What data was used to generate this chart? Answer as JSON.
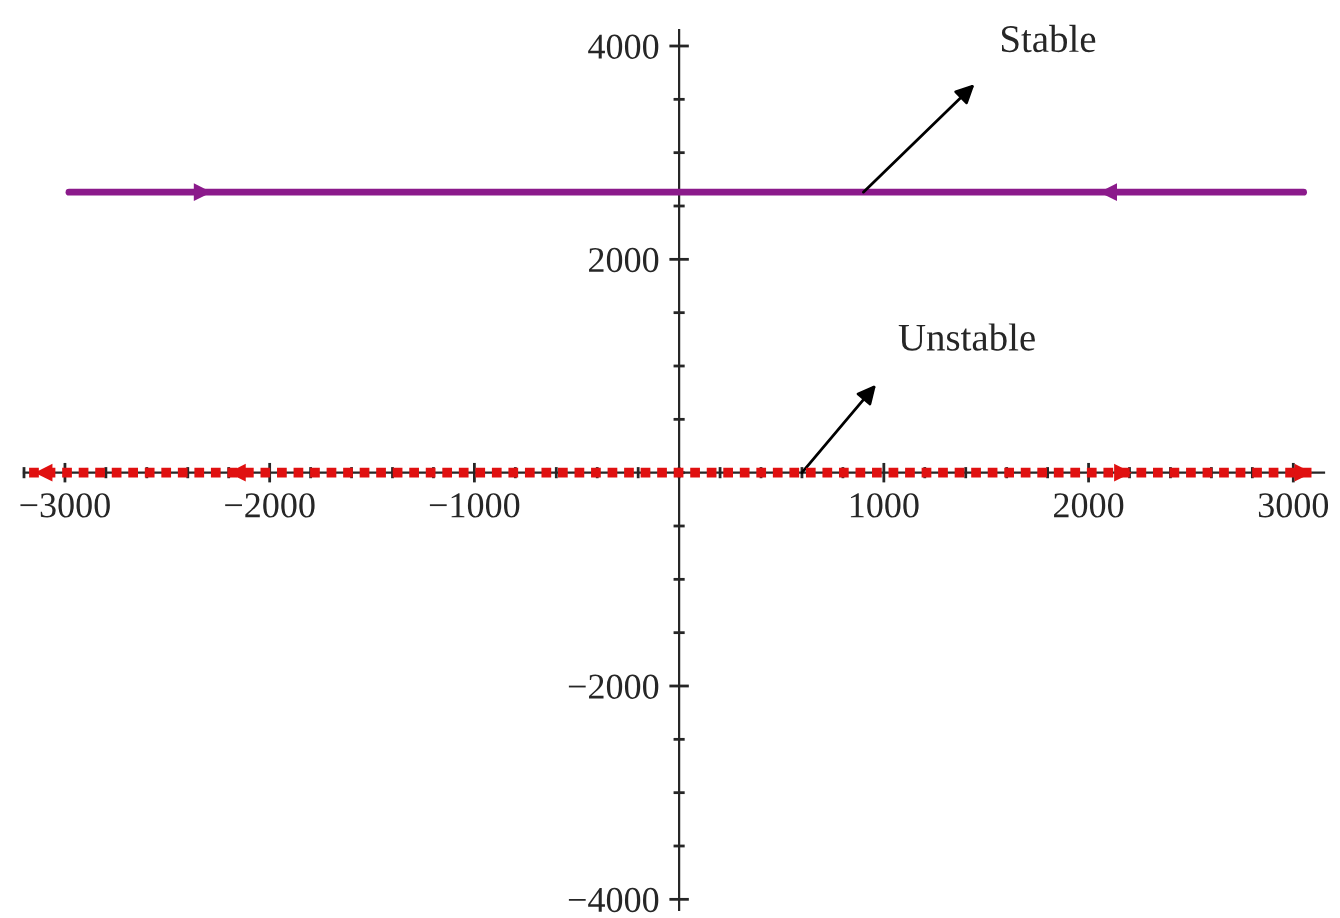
{
  "chart_data": {
    "type": "line",
    "series": [
      {
        "color": "#8b1a8b",
        "x": [
          -2980,
          3050
        ],
        "values": [
          2630,
          2630
        ],
        "line_style": "solid"
      },
      {
        "color": "#e01010",
        "x": [
          -3175,
          3120
        ],
        "values": [
          0,
          0
        ],
        "line_style": "dashed"
      }
    ],
    "xlim": [
      -3200,
      3150
    ],
    "ylim": [
      -4100,
      4150
    ],
    "xticks": [
      {
        "value": -3000,
        "label": "−3000"
      },
      {
        "value": -2000,
        "label": "−2000"
      },
      {
        "value": -1000,
        "label": "−1000"
      },
      1000,
      2000,
      3000
    ],
    "yticks": [
      {
        "value": -4000,
        "label": "−4000"
      },
      {
        "value": -2000,
        "label": "−2000"
      },
      2000,
      4000
    ],
    "annotations": [
      {
        "text": "Stable",
        "x": 900,
        "y": 2630
      },
      {
        "text": "Unstable",
        "x": 600,
        "y": 0
      }
    ],
    "grid": false,
    "legend": false,
    "marker": "none"
  }
}
